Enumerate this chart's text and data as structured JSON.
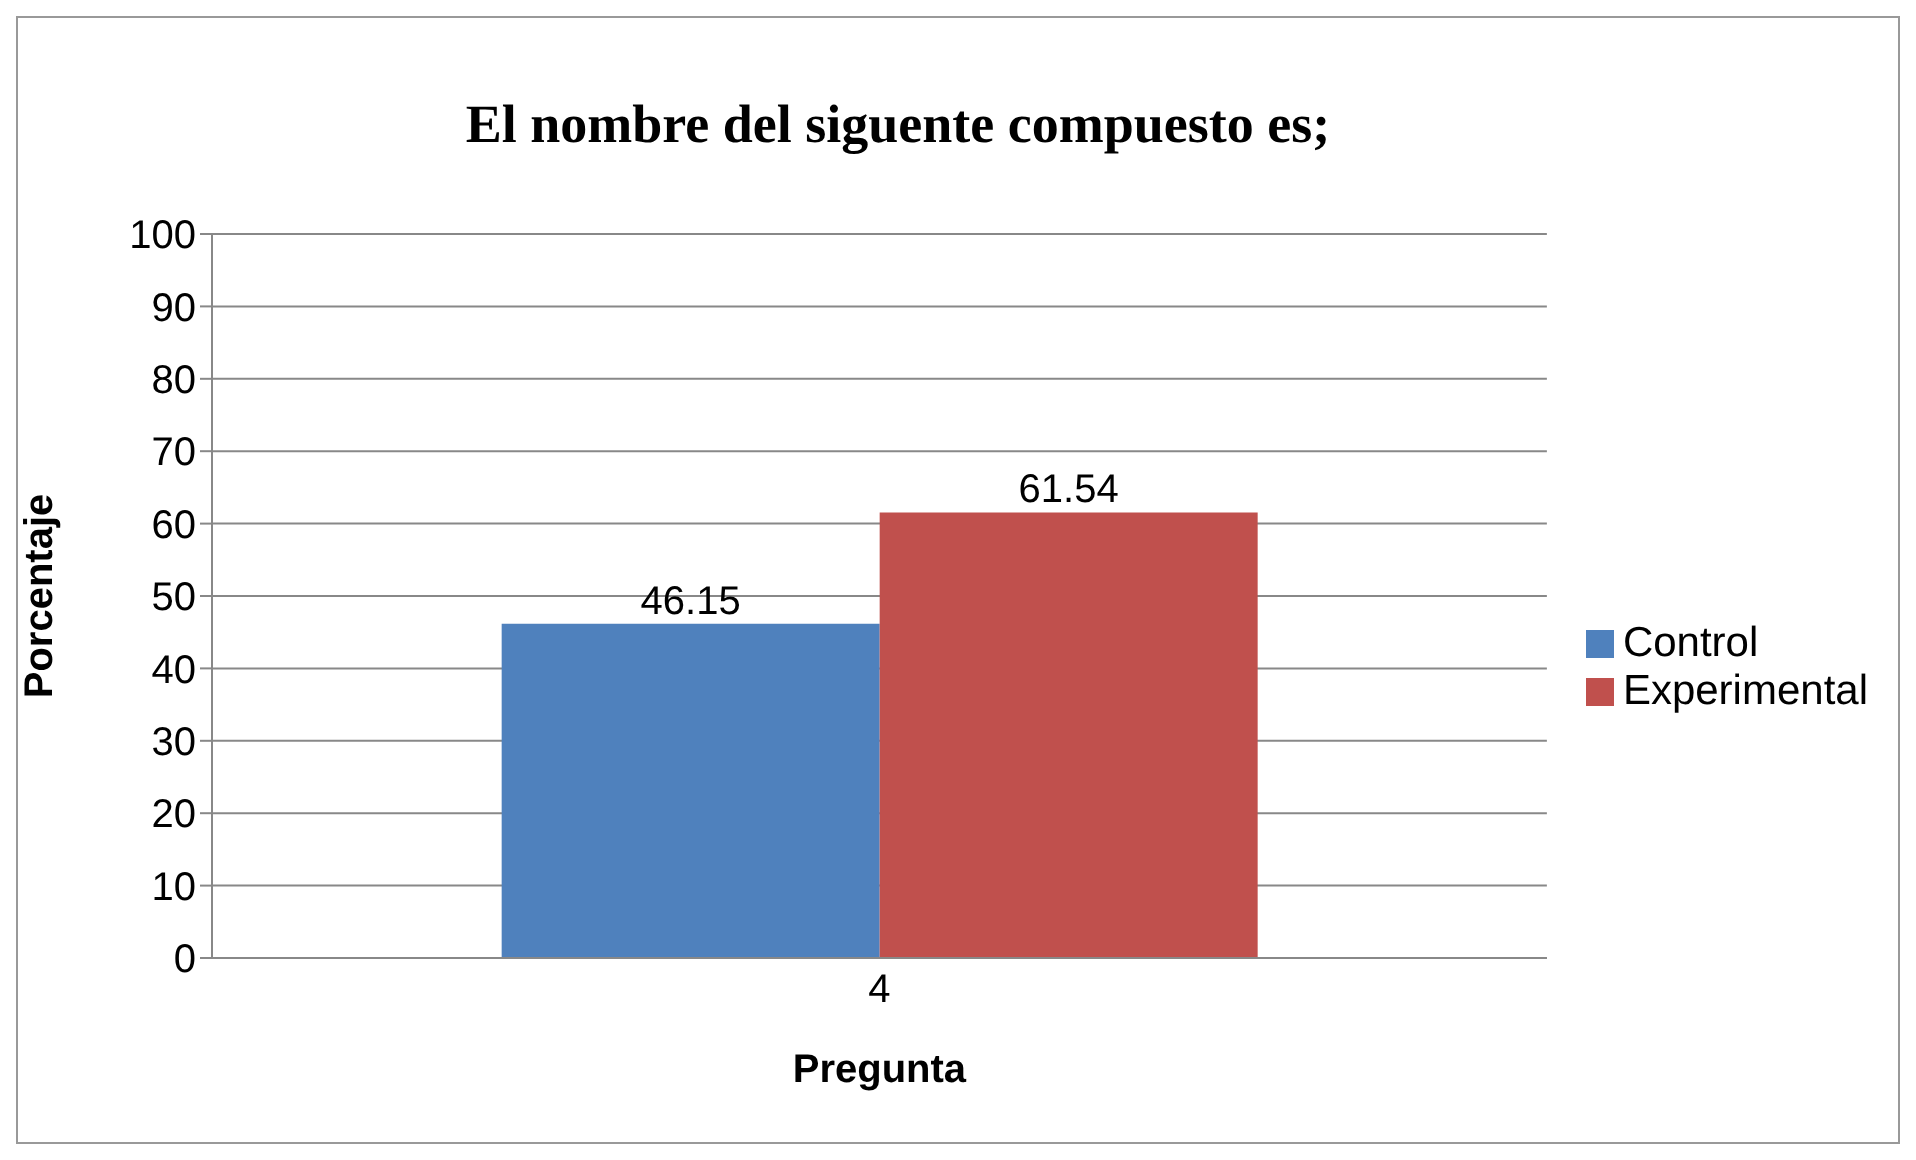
{
  "chart_data": {
    "type": "bar",
    "title": "El nombre del siguente compuesto es;",
    "xlabel": "Pregunta",
    "ylabel": "Porcentaje",
    "categories": [
      "4"
    ],
    "series": [
      {
        "name": "Control",
        "color": "#4f81bd",
        "values": [
          46.15
        ]
      },
      {
        "name": "Experimental",
        "color": "#c0504d",
        "values": [
          61.54
        ]
      }
    ],
    "ylim": [
      0,
      100
    ],
    "yticks": [
      0,
      10,
      20,
      30,
      40,
      50,
      60,
      70,
      80,
      90,
      100
    ],
    "grid": "y",
    "legend": "right",
    "data_labels": true
  }
}
